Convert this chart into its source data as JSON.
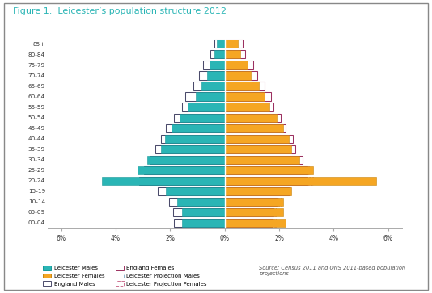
{
  "title": "Figure 1:  Leicester’s population structure 2012",
  "age_groups": [
    "00-04",
    "05-09",
    "10-14",
    "15-19",
    "20-24",
    "25-29",
    "30-34",
    "35-39",
    "40-44",
    "45-49",
    "50-54",
    "55-59",
    "60-64",
    "65-69",
    "70-74",
    "75-79",
    "80-84",
    "85+"
  ],
  "leicester_males": [
    1.55,
    1.55,
    1.75,
    2.15,
    4.5,
    3.2,
    2.85,
    2.35,
    2.2,
    1.95,
    1.65,
    1.35,
    1.05,
    0.85,
    0.65,
    0.55,
    0.38,
    0.28
  ],
  "leicester_females": [
    2.25,
    2.15,
    2.15,
    2.45,
    5.55,
    3.25,
    2.75,
    2.45,
    2.35,
    2.15,
    1.95,
    1.65,
    1.45,
    1.25,
    0.95,
    0.85,
    0.58,
    0.48
  ],
  "england_males": [
    1.85,
    1.9,
    2.05,
    2.45,
    3.15,
    2.95,
    2.75,
    2.55,
    2.35,
    2.15,
    1.85,
    1.55,
    1.45,
    1.15,
    0.95,
    0.8,
    0.52,
    0.38
  ],
  "england_females": [
    1.75,
    1.8,
    1.95,
    2.35,
    3.05,
    3.05,
    2.85,
    2.6,
    2.5,
    2.25,
    2.05,
    1.8,
    1.7,
    1.45,
    1.2,
    1.05,
    0.75,
    0.65
  ],
  "proj_males": [
    1.65,
    1.65,
    1.78,
    2.18,
    3.05,
    2.9,
    2.65,
    2.45,
    2.25,
    2.05,
    1.75,
    1.45,
    1.25,
    1.0,
    0.75,
    0.62,
    0.44,
    0.32
  ],
  "proj_females": [
    1.9,
    1.92,
    2.05,
    2.42,
    3.25,
    3.15,
    2.8,
    2.52,
    2.42,
    2.2,
    2.0,
    1.72,
    1.58,
    1.35,
    1.08,
    0.92,
    0.65,
    0.55
  ],
  "leicester_male_color": "#2ab5b5",
  "leicester_female_color": "#f5a623",
  "england_male_edge": "#4a4a6a",
  "england_female_edge": "#9b3060",
  "proj_male_edge": "#8cb4cc",
  "proj_female_edge": "#cc7090",
  "title_color": "#2ab5b5",
  "xlim": 6.5,
  "source_text": "Source: Census 2011 and ONS 2011-based population\nprojections"
}
